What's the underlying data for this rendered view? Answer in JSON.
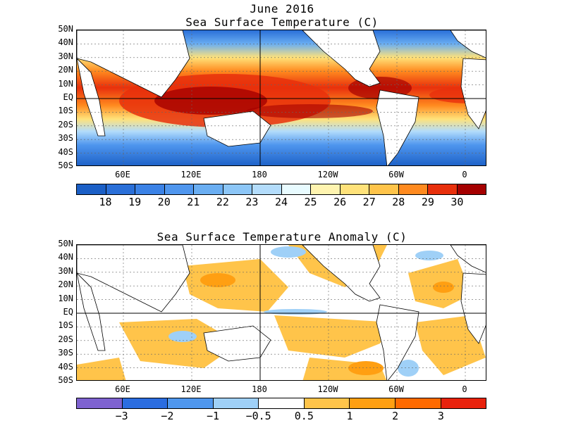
{
  "header": {
    "title": "June 2016"
  },
  "maps": [
    {
      "id": "sst",
      "title": "Sea Surface Temperature (C)",
      "lat_labels": [
        "50N",
        "40N",
        "30N",
        "20N",
        "10N",
        "EQ",
        "10S",
        "20S",
        "30S",
        "40S",
        "50S"
      ],
      "lon_labels": [
        "60E",
        "120E",
        "180",
        "120W",
        "60W",
        "0"
      ],
      "colorbar": {
        "colors": [
          "#1b5fc6",
          "#2a6fd8",
          "#3b82e6",
          "#4f96ee",
          "#6aaef2",
          "#8cc6f7",
          "#b3dcfb",
          "#e8fbff",
          "#fff4b0",
          "#ffe27a",
          "#ffc44a",
          "#ff8a1f",
          "#e8300c",
          "#a50000"
        ],
        "ticks": [
          "18",
          "19",
          "20",
          "21",
          "22",
          "23",
          "24",
          "25",
          "26",
          "27",
          "28",
          "29",
          "30"
        ]
      }
    },
    {
      "id": "anomaly",
      "title": "Sea Surface Temperature Anomaly (C)",
      "lat_labels": [
        "50N",
        "40N",
        "30N",
        "20N",
        "10N",
        "EQ",
        "10S",
        "20S",
        "30S",
        "40S",
        "50S"
      ],
      "lon_labels": [
        "60E",
        "120E",
        "180",
        "120W",
        "60W",
        "0"
      ],
      "colorbar": {
        "colors": [
          "#7e62d0",
          "#2b6de0",
          "#4f97ee",
          "#9fd0f7",
          "#ffffff",
          "#ffc44a",
          "#ff9f12",
          "#ff6a00",
          "#e8220c"
        ],
        "ticks": [
          "−3",
          "−2",
          "−1",
          "−0.5",
          "0.5",
          "1",
          "2",
          "3"
        ]
      }
    }
  ]
}
